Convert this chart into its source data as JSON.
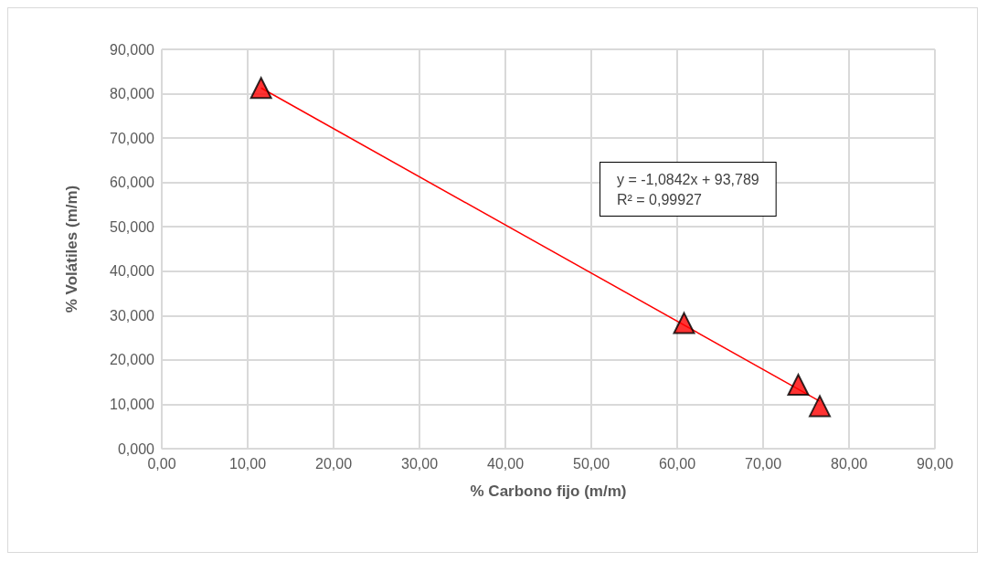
{
  "chart_data": {
    "type": "scatter",
    "xlabel": "% Carbono fijo (m/m)",
    "ylabel": "% Volátiles (m/m)",
    "series": [
      {
        "color": "#ff0000",
        "x": [
          11.56,
          60.8,
          74.1,
          76.6
        ],
        "values": [
          81.3,
          28.3,
          14.4,
          9.6
        ],
        "marker": "triangle"
      },
      {
        "type": "line",
        "color": "#ff0000",
        "x": [
          11.56,
          76.6
        ],
        "values": [
          81.3,
          10.7
        ],
        "marker": "none"
      }
    ],
    "annotations": [
      "y = -1,0842x + 93,789",
      "R² = 0,99927"
    ],
    "xlim": [
      0,
      90
    ],
    "ylim": [
      0,
      90
    ],
    "xticks": [
      {
        "value": 0,
        "label": "0,00"
      },
      {
        "value": 10,
        "label": "10,00"
      },
      {
        "value": 20,
        "label": "20,00"
      },
      {
        "value": 30,
        "label": "30,00"
      },
      {
        "value": 40,
        "label": "40,00"
      },
      {
        "value": 50,
        "label": "50,00"
      },
      {
        "value": 60,
        "label": "60,00"
      },
      {
        "value": 70,
        "label": "70,00"
      },
      {
        "value": 80,
        "label": "80,00"
      },
      {
        "value": 90,
        "label": "90,00"
      }
    ],
    "yticks": [
      {
        "value": 0,
        "label": "0,000"
      },
      {
        "value": 10,
        "label": "10,000"
      },
      {
        "value": 20,
        "label": "20,000"
      },
      {
        "value": 30,
        "label": "30,000"
      },
      {
        "value": 40,
        "label": "40,000"
      },
      {
        "value": 50,
        "label": "50,000"
      },
      {
        "value": 60,
        "label": "60,000"
      },
      {
        "value": 70,
        "label": "70,000"
      },
      {
        "value": 80,
        "label": "80,000"
      },
      {
        "value": 90,
        "label": "90,000"
      }
    ],
    "grid": true
  }
}
